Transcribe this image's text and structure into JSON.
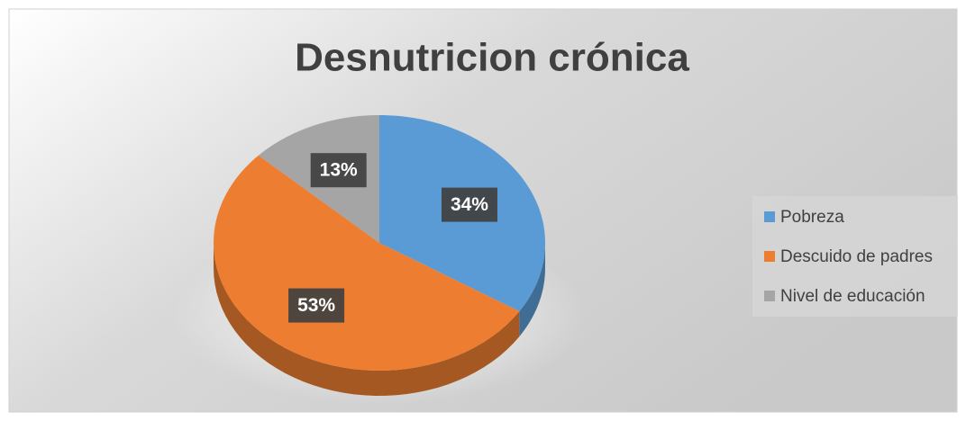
{
  "chart_data": {
    "type": "pie",
    "title": "Desnutricion crónica",
    "categories": [
      "Pobreza",
      "Descuido de padres",
      "Nivel de educación"
    ],
    "values": [
      34,
      53,
      13
    ],
    "value_labels": [
      "34%",
      "53%",
      "13%"
    ],
    "colors": [
      "#5b9bd5",
      "#ed7d31",
      "#a5a5a5"
    ],
    "legend": "right"
  }
}
